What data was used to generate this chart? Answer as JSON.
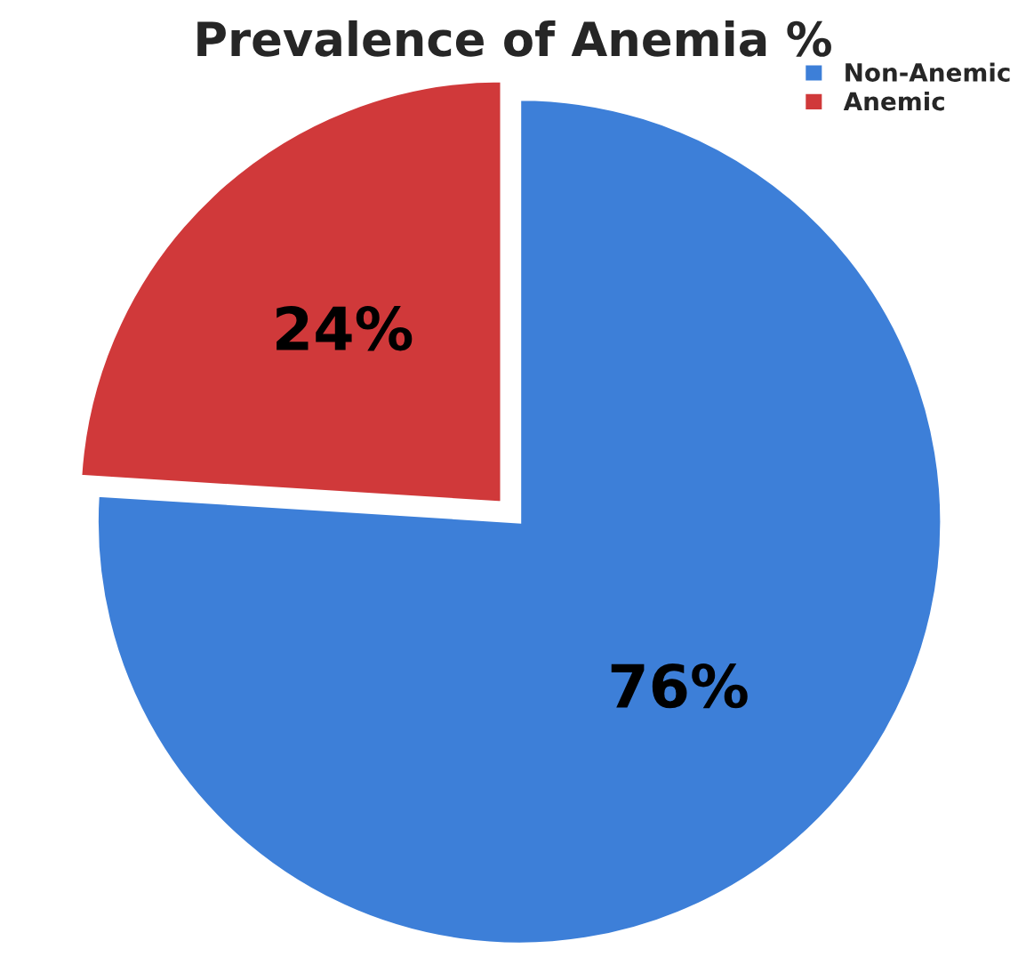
{
  "chart_data": {
    "type": "pie",
    "title": "Prevalence of Anemia %",
    "categories": [
      "Non-Anemic",
      "Anemic"
    ],
    "values": [
      76,
      24
    ],
    "colors": [
      "#3d7fd8",
      "#d0393a"
    ],
    "value_labels": [
      "76%",
      "24%"
    ],
    "legend": "top right"
  }
}
